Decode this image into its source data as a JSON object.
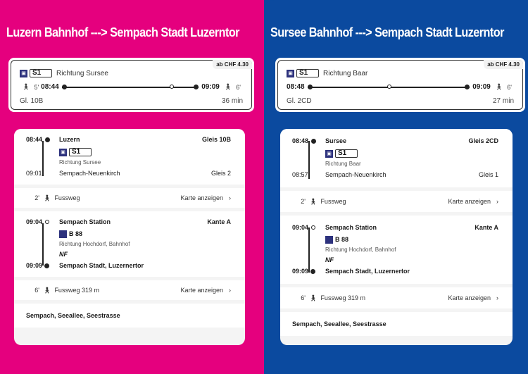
{
  "colors": {
    "left_bg": "#e5007e",
    "right_bg": "#0b4a9f",
    "transport_icon": "#2d327d"
  },
  "panels": [
    {
      "title": "Luzern Bahnhof ---> Sempach Stadt Luzerntor",
      "summary": {
        "price": "ab CHF  4.30",
        "line": "S1",
        "direction": "Richtung Sursee",
        "walk_before": "5'",
        "depart": "08:44",
        "arrive": "09:09",
        "walk_after": "6'",
        "platform": "Gl. 10B",
        "duration": "36 min"
      },
      "legs": [
        {
          "from_time": "08:44",
          "from": "Luzern",
          "from_platform": "Gleis 10B",
          "line": "S1",
          "direction": "Richtung Sursee",
          "note": "",
          "to_time": "09:01",
          "to": "Sempach-Neuenkirch",
          "to_platform": "Gleis 2",
          "type": "train"
        },
        {
          "walk_min": "2'",
          "walk_label": "Fussweg",
          "map": "Karte anzeigen",
          "type": "walk"
        },
        {
          "from_time": "09:04",
          "from": "Sempach Station",
          "from_platform": "Kante A",
          "line": "B 88",
          "direction": "Richtung Hochdorf, Bahnhof",
          "note": "NF",
          "to_time": "09:09",
          "to": "Sempach Stadt, Luzernertor",
          "to_platform": "",
          "type": "bus"
        },
        {
          "walk_min": "6'",
          "walk_label": "Fussweg 319 m",
          "map": "Karte anzeigen",
          "type": "walk"
        }
      ],
      "destination": "Sempach, Seeallee, Seestrasse"
    },
    {
      "title": "Sursee Bahnhof ---> Sempach Stadt Luzerntor",
      "summary": {
        "price": "ab CHF  4.30",
        "line": "S1",
        "direction": "Richtung Baar",
        "walk_before": "",
        "depart": "08:48",
        "arrive": "09:09",
        "walk_after": "6'",
        "platform": "Gl. 2CD",
        "duration": "27 min"
      },
      "legs": [
        {
          "from_time": "08:48",
          "from": "Sursee",
          "from_platform": "Gleis 2CD",
          "line": "S1",
          "direction": "Richtung Baar",
          "note": "",
          "to_time": "08:57",
          "to": "Sempach-Neuenkirch",
          "to_platform": "Gleis 1",
          "type": "train"
        },
        {
          "walk_min": "2'",
          "walk_label": "Fussweg",
          "map": "Karte anzeigen",
          "type": "walk"
        },
        {
          "from_time": "09:04",
          "from": "Sempach Station",
          "from_platform": "Kante A",
          "line": "B 88",
          "direction": "Richtung Hochdorf, Bahnhof",
          "note": "NF",
          "to_time": "09:09",
          "to": "Sempach Stadt, Luzernertor",
          "to_platform": "",
          "type": "bus"
        },
        {
          "walk_min": "6'",
          "walk_label": "Fussweg 319 m",
          "map": "Karte anzeigen",
          "type": "walk"
        }
      ],
      "destination": "Sempach, Seeallee, Seestrasse"
    }
  ]
}
